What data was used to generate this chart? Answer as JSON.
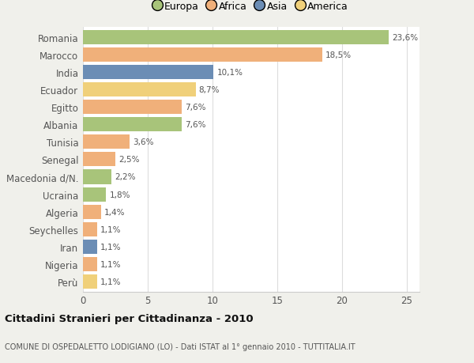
{
  "categories": [
    "Romania",
    "Marocco",
    "India",
    "Ecuador",
    "Egitto",
    "Albania",
    "Tunisia",
    "Senegal",
    "Macedonia d/N.",
    "Ucraina",
    "Algeria",
    "Seychelles",
    "Iran",
    "Nigeria",
    "Perù"
  ],
  "values": [
    23.6,
    18.5,
    10.1,
    8.7,
    7.6,
    7.6,
    3.6,
    2.5,
    2.2,
    1.8,
    1.4,
    1.1,
    1.1,
    1.1,
    1.1
  ],
  "labels": [
    "23,6%",
    "18,5%",
    "10,1%",
    "8,7%",
    "7,6%",
    "7,6%",
    "3,6%",
    "2,5%",
    "2,2%",
    "1,8%",
    "1,4%",
    "1,1%",
    "1,1%",
    "1,1%",
    "1,1%"
  ],
  "colors": [
    "#a8c47a",
    "#f0b07a",
    "#6b8db5",
    "#f0d07a",
    "#f0b07a",
    "#a8c47a",
    "#f0b07a",
    "#f0b07a",
    "#a8c47a",
    "#a8c47a",
    "#f0b07a",
    "#f0b07a",
    "#6b8db5",
    "#f0b07a",
    "#f0d07a"
  ],
  "legend_labels": [
    "Europa",
    "Africa",
    "Asia",
    "America"
  ],
  "legend_colors": [
    "#a8c47a",
    "#f0b07a",
    "#6b8db5",
    "#f0d07a"
  ],
  "title": "Cittadini Stranieri per Cittadinanza - 2010",
  "subtitle": "COMUNE DI OSPEDALETTO LODIGIANO (LO) - Dati ISTAT al 1° gennaio 2010 - TUTTITALIA.IT",
  "xlim": [
    0,
    26
  ],
  "xticks": [
    0,
    5,
    10,
    15,
    20,
    25
  ],
  "bg_color": "#f0f0eb",
  "plot_bg_color": "#ffffff"
}
